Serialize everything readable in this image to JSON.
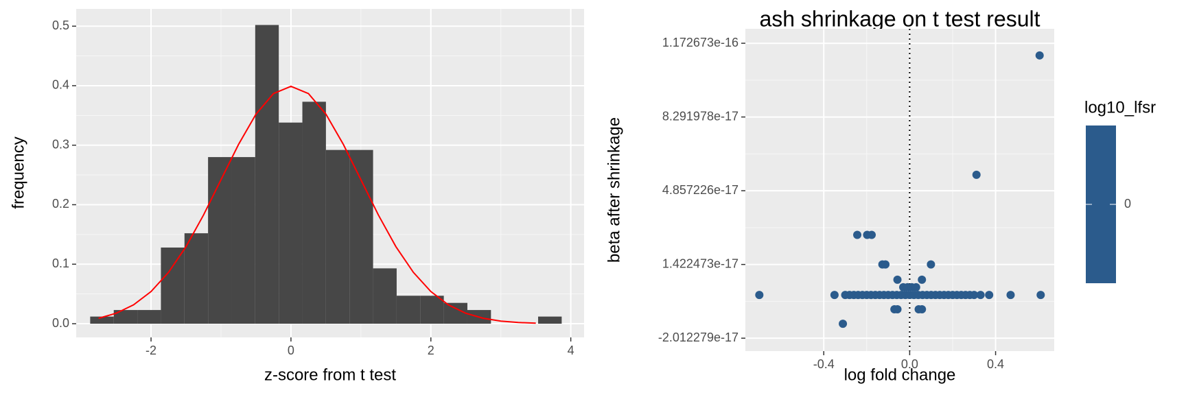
{
  "chart_data": [
    {
      "type": "histogram",
      "xlabel": "z-score from t test",
      "ylabel": "frequency",
      "bins": [
        -2.87,
        -2.533,
        -2.196,
        -1.859,
        -1.522,
        -1.185,
        -0.848,
        -0.511,
        -0.174,
        0.163,
        0.5,
        0.837,
        1.174,
        1.511,
        1.848,
        2.185,
        2.522,
        2.859,
        3.196,
        3.533,
        3.87
      ],
      "values": [
        0.012,
        0.023,
        0.023,
        0.128,
        0.152,
        0.28,
        0.28,
        0.502,
        0.338,
        0.373,
        0.292,
        0.292,
        0.093,
        0.047,
        0.047,
        0.035,
        0.023,
        0,
        0,
        0.012
      ],
      "color": "#474747",
      "curve": {
        "color": "#ff0000",
        "x": [
          -2.75,
          -2.5,
          -2.25,
          -2,
          -1.75,
          -1.5,
          -1.25,
          -1,
          -0.75,
          -0.5,
          -0.25,
          0,
          0.25,
          0.5,
          0.75,
          1,
          1.25,
          1.5,
          1.75,
          2,
          2.25,
          2.5,
          2.75,
          3,
          3.25,
          3.5
        ],
        "values": [
          0.0091,
          0.0175,
          0.0317,
          0.054,
          0.0863,
          0.1295,
          0.1826,
          0.242,
          0.3011,
          0.3521,
          0.3867,
          0.3989,
          0.3867,
          0.3521,
          0.3011,
          0.242,
          0.1826,
          0.1295,
          0.0863,
          0.054,
          0.0317,
          0.0175,
          0.0091,
          0.0044,
          0.002,
          0.0009
        ]
      },
      "xlim": [
        -3.07,
        4.19
      ],
      "ylim": [
        -0.023,
        0.529
      ],
      "xticks": [
        -2,
        0,
        2,
        4
      ],
      "yticks": [
        {
          "value": 0,
          "label": "0.0"
        },
        0.1,
        0.2,
        0.3,
        0.4,
        0.5
      ],
      "grid": true
    },
    {
      "type": "scatter",
      "title": "ash shrinkage on t test result",
      "xlabel": "log fold change",
      "ylabel": "beta after shrinkage",
      "color": "#2b5b8c",
      "x": [
        0.605,
        0.311,
        -0.244,
        -0.198,
        -0.177,
        -0.127,
        -0.113,
        0.099,
        -0.057,
        0.057,
        -0.03,
        -0.01,
        0.01,
        0.03,
        -0.057,
        -0.071,
        0.057,
        0.042,
        -0.311,
        -0.7,
        -0.35,
        -0.3,
        -0.28,
        -0.26,
        -0.24,
        -0.22,
        -0.2,
        -0.18,
        -0.16,
        -0.14,
        -0.12,
        -0.1,
        -0.08,
        -0.06,
        -0.04,
        -0.02,
        0,
        0.02,
        0.04,
        0.06,
        0.08,
        0.1,
        0.12,
        0.14,
        0.16,
        0.18,
        0.2,
        0.22,
        0.24,
        0.26,
        0.28,
        0.3,
        0.33,
        0.37,
        0.47,
        0.61
      ],
      "values": [
        1.116e-16,
        5.601e-17,
        2.8e-17,
        2.8e-17,
        2.8e-17,
        1.4225e-17,
        1.4225e-17,
        1.4225e-17,
        7.14e-18,
        7.14e-18,
        3.6e-18,
        3.6e-18,
        3.6e-18,
        3.6e-18,
        -6.67e-18,
        -6.67e-18,
        -6.67e-18,
        -6.67e-18,
        -1.34e-17,
        0,
        0,
        0,
        0,
        0,
        0,
        0,
        0,
        0,
        0,
        0,
        0,
        0,
        0,
        0,
        0,
        0,
        0,
        0,
        0,
        0,
        0,
        0,
        0,
        0,
        0,
        0,
        0,
        0,
        0,
        0,
        0,
        0,
        0,
        0,
        0,
        0
      ],
      "vline": 0,
      "xlim": [
        -0.765,
        0.673
      ],
      "ylim": [
        -2.614e-17,
        1.24e-16
      ],
      "xticks": [
        -0.4,
        {
          "value": 0,
          "label": "0.0"
        },
        0.4
      ],
      "yticks": [
        -2.012279e-17,
        1.422473e-17,
        4.857226e-17,
        8.291978e-17,
        1.172673e-16
      ],
      "grid": true,
      "legend_title": "log10_lfsr",
      "legend_ticks": [
        0
      ]
    }
  ]
}
